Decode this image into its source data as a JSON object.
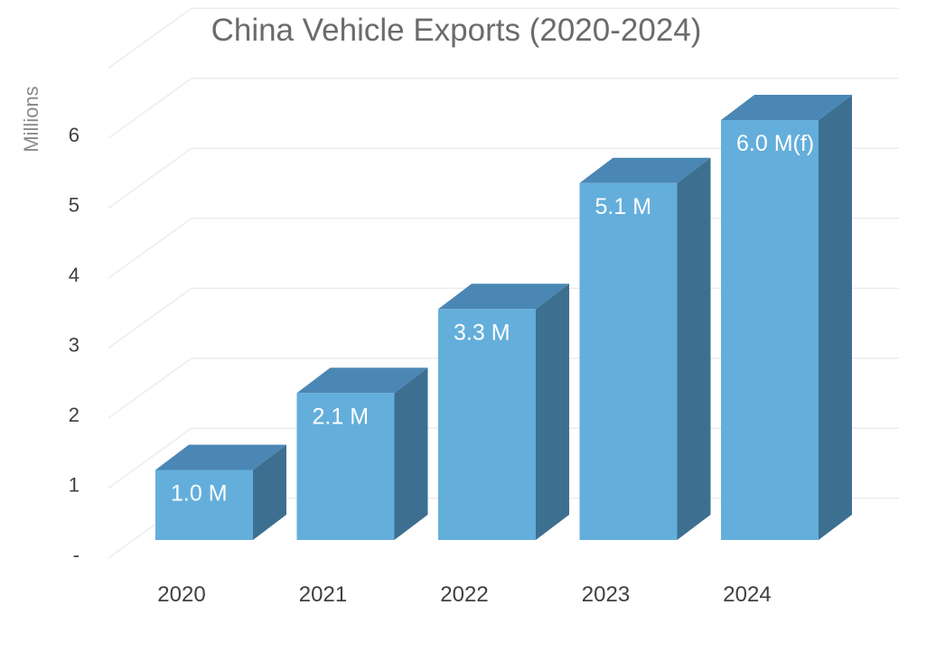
{
  "chart_data": {
    "type": "bar",
    "title": "China Vehicle Exports (2020-2024)",
    "ylabel": "Millions",
    "xlabel": "",
    "categories": [
      "2020",
      "2021",
      "2022",
      "2023",
      "2024"
    ],
    "values": [
      1.0,
      2.1,
      3.3,
      5.1,
      6.0
    ],
    "data_labels": [
      "1.0 M",
      "2.1 M",
      "3.3 M",
      "5.1 M",
      "6.0 M(f)"
    ],
    "y_ticks": [
      0,
      1,
      2,
      3,
      4,
      5,
      6
    ],
    "y_tick_labels": [
      "-",
      "1",
      "2",
      "3",
      "4",
      "5",
      "6"
    ],
    "ylim": [
      0,
      7
    ],
    "grid": true,
    "legend": "none",
    "style": "3d",
    "colors": {
      "bar_front": "#64aedb",
      "bar_top": "#4a87b4",
      "bar_side": "#3d6f91",
      "grid": "#ececec",
      "title": "#6b6b6b",
      "label": "#ffffff"
    }
  }
}
